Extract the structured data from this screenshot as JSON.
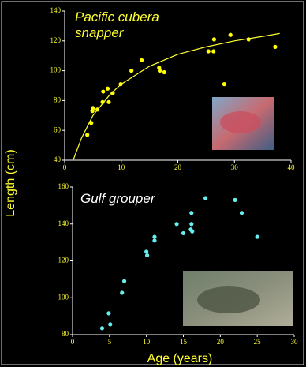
{
  "y_label": "Length (cm)",
  "x_label": "Age (years)",
  "chart_data": [
    {
      "type": "scatter",
      "title": "Pacific cubera snapper",
      "title_color": "#ffff33",
      "xlim": [
        0,
        40
      ],
      "ylim": [
        40,
        140
      ],
      "xticks": [
        0,
        10,
        20,
        30,
        40
      ],
      "yticks": [
        40,
        60,
        80,
        100,
        120,
        140
      ],
      "series": [
        {
          "color": "#ffff00",
          "x": [
            4,
            4.7,
            4.9,
            5,
            5.8,
            6.7,
            6.8,
            7.6,
            7.8,
            8.5,
            9.9,
            11.8,
            13.6,
            16.7,
            16.8,
            17.6,
            25.4,
            26.3,
            26.4,
            28.2,
            29.3,
            32.5,
            37.2
          ],
          "values": [
            57,
            65,
            73,
            75,
            74,
            79,
            86,
            88,
            79,
            85,
            91,
            100,
            107,
            102,
            100,
            99,
            113,
            113,
            121,
            91,
            124,
            121,
            116
          ]
        },
        {
          "type": "line",
          "color": "#ffff33",
          "x": [
            1.5,
            3,
            5,
            8,
            10,
            15,
            20,
            25,
            30,
            35,
            38
          ],
          "values": [
            40,
            55,
            70,
            84,
            91,
            103,
            111,
            116,
            120,
            123,
            125
          ]
        }
      ]
    },
    {
      "type": "scatter",
      "title": "Gulf grouper",
      "title_color": "#ffffff",
      "xlim": [
        0,
        30
      ],
      "ylim": [
        80,
        160
      ],
      "xticks": [
        0,
        5,
        10,
        15,
        20,
        25,
        30
      ],
      "yticks": [
        80,
        100,
        120,
        140,
        160
      ],
      "series": [
        {
          "color": "#66eeee",
          "x": [
            4,
            4.9,
            5.1,
            6.7,
            7,
            10,
            10.1,
            11.1,
            11.1,
            14.1,
            15,
            16,
            16.1,
            16.1,
            16.2,
            18,
            22,
            22.9,
            25
          ],
          "values": [
            83.5,
            91.6,
            85.6,
            102.7,
            109,
            125,
            123,
            133,
            131,
            140,
            135,
            137,
            146,
            140,
            136,
            154,
            153,
            146,
            133
          ]
        }
      ]
    }
  ]
}
